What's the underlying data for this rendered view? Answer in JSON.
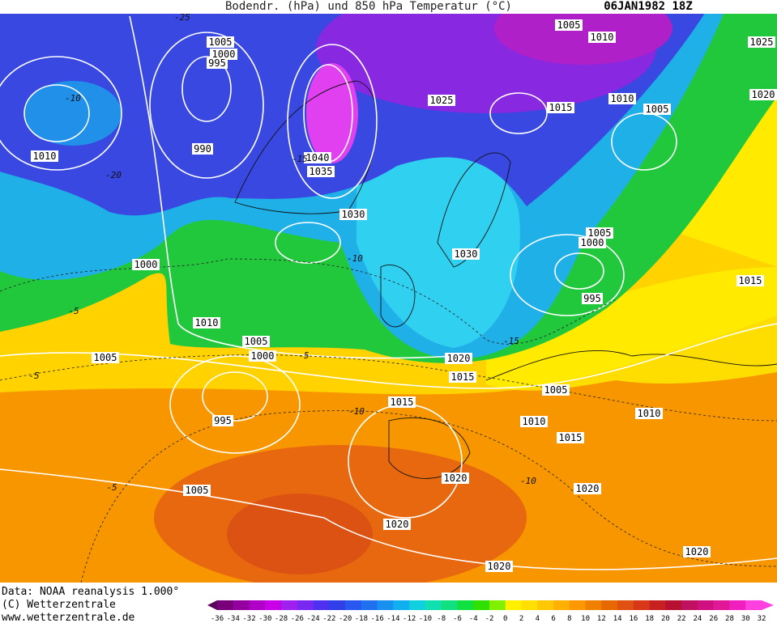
{
  "header": {
    "title": "Bodendr. (hPa) und 850 hPa Temperatur (°C)",
    "date": "06JAN1982 18Z"
  },
  "isobar_labels": [
    "1005",
    "1000",
    "995",
    "990",
    "1010",
    "1000",
    "1010",
    "1005",
    "1005",
    "1000",
    "995",
    "1005",
    "1040",
    "1035",
    "1030",
    "1025",
    "1030",
    "1020",
    "1015",
    "1015",
    "1020",
    "1020",
    "1020",
    "1005",
    "1010",
    "1015",
    "1010",
    "1005",
    "1025",
    "1020",
    "1005",
    "1000",
    "995",
    "1005",
    "1010",
    "1015",
    "1010",
    "1020",
    "1020",
    "1015"
  ],
  "temperature_labels": [
    "-10",
    "-5",
    "-5",
    "-5",
    "-10",
    "-5",
    "-10",
    "-15",
    "-15",
    "-10",
    "-20",
    "-25"
  ],
  "footer": [
    "Data: NOAA reanalysis 1.000°",
    "(C) Wetterzentrale",
    "www.wetterzentrale.de"
  ],
  "colorbar": {
    "ticks": [
      -36,
      -34,
      -32,
      -30,
      -28,
      -26,
      -24,
      -22,
      -20,
      -18,
      -16,
      -14,
      -12,
      -10,
      -8,
      -6,
      -4,
      -2,
      0,
      2,
      4,
      6,
      8,
      10,
      12,
      14,
      16,
      18,
      20,
      22,
      24,
      26,
      28,
      30,
      32
    ]
  }
}
